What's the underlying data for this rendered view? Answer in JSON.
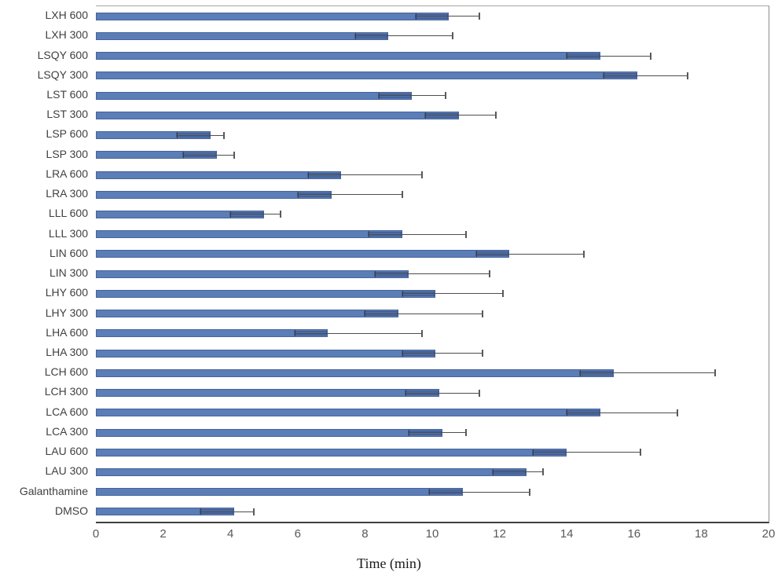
{
  "chart_data": {
    "type": "bar",
    "orientation": "horizontal",
    "title": "",
    "xlabel": "Time (min)",
    "ylabel": "",
    "xlim": [
      0,
      20
    ],
    "x_ticks": [
      0,
      2,
      4,
      6,
      8,
      10,
      12,
      14,
      16,
      18,
      20
    ],
    "grid": false,
    "legend": null,
    "error_bar_style": "plus-side whisker with end cap; darker band of ~1 unit inside bar end with small tick",
    "error_minus_visual": 1.0,
    "rows": [
      {
        "label": "LXH 600",
        "value": 10.5,
        "error_plus": 0.9
      },
      {
        "label": "LXH 300",
        "value": 8.7,
        "error_plus": 1.9
      },
      {
        "label": "LSQY 600",
        "value": 15.0,
        "error_plus": 1.5
      },
      {
        "label": "LSQY 300",
        "value": 16.1,
        "error_plus": 1.5
      },
      {
        "label": "LST 600",
        "value": 9.4,
        "error_plus": 1.0
      },
      {
        "label": "LST 300",
        "value": 10.8,
        "error_plus": 1.1
      },
      {
        "label": "LSP 600",
        "value": 3.4,
        "error_plus": 0.4
      },
      {
        "label": "LSP 300",
        "value": 3.6,
        "error_plus": 0.5
      },
      {
        "label": "LRA 600",
        "value": 7.3,
        "error_plus": 2.4
      },
      {
        "label": "LRA 300",
        "value": 7.0,
        "error_plus": 2.1
      },
      {
        "label": "LLL 600",
        "value": 5.0,
        "error_plus": 0.5
      },
      {
        "label": "LLL 300",
        "value": 9.1,
        "error_plus": 1.9
      },
      {
        "label": "LIN 600",
        "value": 12.3,
        "error_plus": 2.2
      },
      {
        "label": "LIN 300",
        "value": 9.3,
        "error_plus": 2.4
      },
      {
        "label": "LHY 600",
        "value": 10.1,
        "error_plus": 2.0
      },
      {
        "label": "LHY 300",
        "value": 9.0,
        "error_plus": 2.5
      },
      {
        "label": "LHA 600",
        "value": 6.9,
        "error_plus": 2.8
      },
      {
        "label": "LHA 300",
        "value": 10.1,
        "error_plus": 1.4
      },
      {
        "label": "LCH 600",
        "value": 15.4,
        "error_plus": 3.0
      },
      {
        "label": "LCH 300",
        "value": 10.2,
        "error_plus": 1.2
      },
      {
        "label": "LCA 600",
        "value": 15.0,
        "error_plus": 2.3
      },
      {
        "label": "LCA 300",
        "value": 10.3,
        "error_plus": 0.7
      },
      {
        "label": "LAU 600",
        "value": 14.0,
        "error_plus": 2.2
      },
      {
        "label": "LAU 300",
        "value": 12.8,
        "error_plus": 0.5
      },
      {
        "label": "Galanthamine",
        "value": 10.9,
        "error_plus": 2.0
      },
      {
        "label": "DMSO",
        "value": 4.1,
        "error_plus": 0.6
      }
    ]
  },
  "colors": {
    "bar_fill": "#5b7eb8",
    "bar_border": "#46639b",
    "band_fill": "#4c6ba3",
    "band_border": "#3d5a8f",
    "whisker": "#4d4d4d",
    "cap": "#595959",
    "minus_tick": "#3f3f3f",
    "axis_line": "#3f3f3f",
    "plot_border": "#a6a6a6",
    "category_label": "#404040",
    "tick_label": "#595959",
    "axis_title": "#1a1a1a",
    "background": "#ffffff"
  }
}
